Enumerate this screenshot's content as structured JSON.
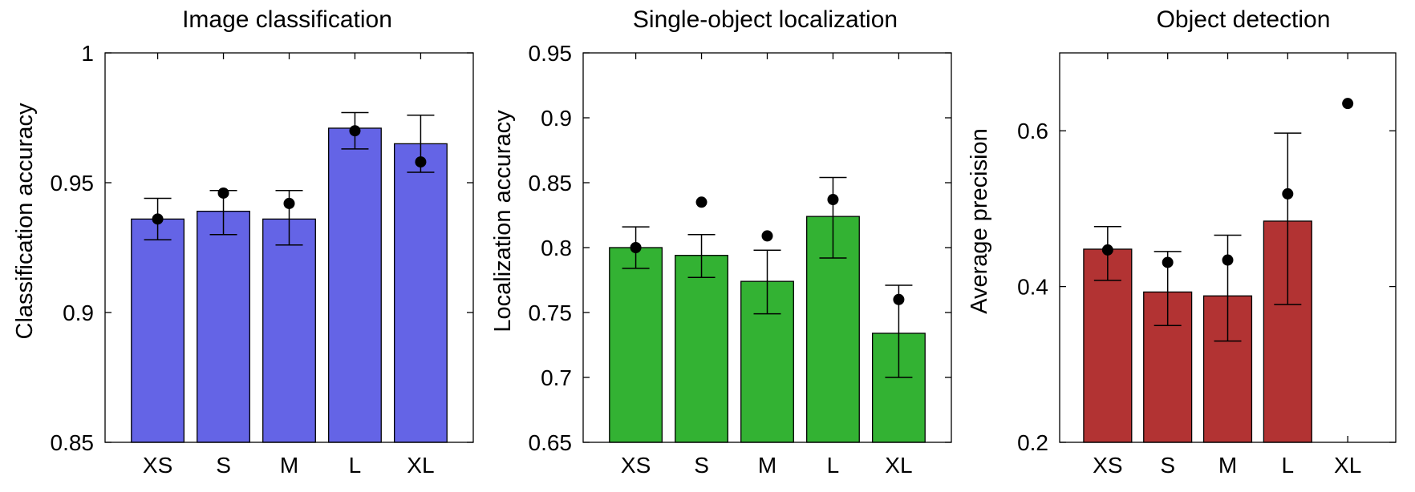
{
  "chart_data": [
    {
      "type": "bar",
      "title": "Image classification",
      "ylabel": "Classification accuracy",
      "xlabel": "",
      "categories": [
        "XS",
        "S",
        "M",
        "L",
        "XL"
      ],
      "ylim": [
        0.85,
        1.0
      ],
      "yticks": [
        0.85,
        0.9,
        0.95,
        1.0
      ],
      "ytick_labels": [
        "0.85",
        "0.9",
        "0.95",
        "1"
      ],
      "bar_color": "#6464e6",
      "values": [
        0.936,
        0.939,
        0.936,
        0.971,
        0.965
      ],
      "error_low": [
        0.928,
        0.93,
        0.926,
        0.963,
        0.954
      ],
      "error_high": [
        0.944,
        0.947,
        0.947,
        0.977,
        0.976
      ],
      "points": [
        0.936,
        0.946,
        0.942,
        0.97,
        0.958
      ]
    },
    {
      "type": "bar",
      "title": "Single-object localization",
      "ylabel": "Localization accuracy",
      "xlabel": "",
      "categories": [
        "XS",
        "S",
        "M",
        "L",
        "XL"
      ],
      "ylim": [
        0.65,
        0.95
      ],
      "yticks": [
        0.65,
        0.7,
        0.75,
        0.8,
        0.85,
        0.9,
        0.95
      ],
      "ytick_labels": [
        "0.65",
        "0.7",
        "0.75",
        "0.8",
        "0.85",
        "0.9",
        "0.95"
      ],
      "bar_color": "#33b233",
      "values": [
        0.8,
        0.794,
        0.774,
        0.824,
        0.734
      ],
      "error_low": [
        0.784,
        0.777,
        0.749,
        0.792,
        0.7
      ],
      "error_high": [
        0.816,
        0.81,
        0.798,
        0.854,
        0.771
      ],
      "points": [
        0.8,
        0.835,
        0.809,
        0.837,
        0.76
      ]
    },
    {
      "type": "bar",
      "title": "Object detection",
      "ylabel": "Average precision",
      "xlabel": "",
      "categories": [
        "XS",
        "S",
        "M",
        "L",
        "XL"
      ],
      "ylim": [
        0.2,
        0.7
      ],
      "yticks": [
        0.2,
        0.4,
        0.6
      ],
      "ytick_labels": [
        "0.2",
        "0.4",
        "0.6"
      ],
      "bar_color": "#b23333",
      "values": [
        0.448,
        0.393,
        0.388,
        0.484,
        null
      ],
      "error_low": [
        0.408,
        0.35,
        0.33,
        0.377,
        null
      ],
      "error_high": [
        0.477,
        0.445,
        0.466,
        0.597,
        null
      ],
      "points": [
        0.447,
        0.431,
        0.434,
        0.519,
        0.635
      ]
    }
  ]
}
